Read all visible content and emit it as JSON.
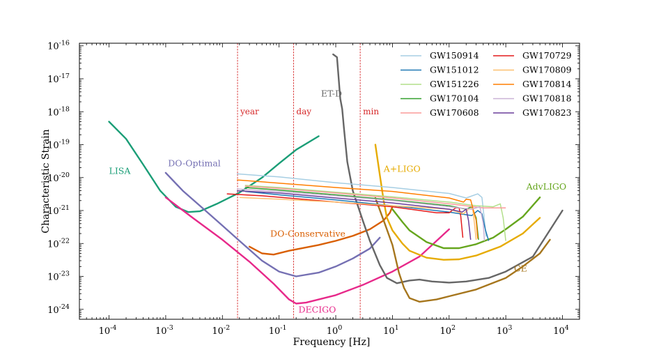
{
  "chart_data": {
    "type": "line",
    "title": "",
    "xlabel": "Frequency [Hz]",
    "ylabel": "Characteristic Strain",
    "xscale": "log",
    "yscale": "log",
    "xlim": [
      3e-05,
      20000
    ],
    "ylim": [
      5e-25,
      1.2e-16
    ],
    "xticks": [
      {
        "value": 0.0001,
        "base": "10",
        "exp": "-4"
      },
      {
        "value": 0.001,
        "base": "10",
        "exp": "-3"
      },
      {
        "value": 0.01,
        "base": "10",
        "exp": "-2"
      },
      {
        "value": 0.1,
        "base": "10",
        "exp": "-1"
      },
      {
        "value": 1,
        "base": "10",
        "exp": "0"
      },
      {
        "value": 10,
        "base": "10",
        "exp": "1"
      },
      {
        "value": 100,
        "base": "10",
        "exp": "2"
      },
      {
        "value": 1000,
        "base": "10",
        "exp": "3"
      },
      {
        "value": 10000,
        "base": "10",
        "exp": "4"
      }
    ],
    "yticks": [
      {
        "value": 1e-24,
        "base": "10",
        "exp": "-24"
      },
      {
        "value": 1e-23,
        "base": "10",
        "exp": "-23"
      },
      {
        "value": 1e-22,
        "base": "10",
        "exp": "-22"
      },
      {
        "value": 1e-21,
        "base": "10",
        "exp": "-21"
      },
      {
        "value": 1e-20,
        "base": "10",
        "exp": "-20"
      },
      {
        "value": 1e-19,
        "base": "10",
        "exp": "-19"
      },
      {
        "value": 1e-18,
        "base": "10",
        "exp": "-18"
      },
      {
        "value": 1e-17,
        "base": "10",
        "exp": "-17"
      },
      {
        "value": 1e-16,
        "base": "10",
        "exp": "-16"
      }
    ],
    "vertical_lines": [
      {
        "x": 0.0185,
        "label": "year",
        "color": "#d62728"
      },
      {
        "x": 0.18,
        "label": "day",
        "color": "#d62728"
      },
      {
        "x": 2.7,
        "label": "min",
        "color": "#d62728"
      }
    ],
    "detectors": [
      {
        "name": "LISA",
        "label": "LISA",
        "color": "#1b9e77",
        "label_at": [
          0.0001,
          1.3e-20
        ],
        "points": [
          [
            0.0001,
            5e-19
          ],
          [
            0.0002,
            1.5e-19
          ],
          [
            0.0004,
            2.5e-20
          ],
          [
            0.0008,
            4e-21
          ],
          [
            0.0015,
            1.3e-21
          ],
          [
            0.0025,
            9e-22
          ],
          [
            0.004,
            9.5e-22
          ],
          [
            0.008,
            1.6e-21
          ],
          [
            0.02,
            3.5e-21
          ],
          [
            0.05,
            1e-20
          ],
          [
            0.1,
            2.7e-20
          ],
          [
            0.2,
            7e-20
          ],
          [
            0.5,
            1.8e-19
          ]
        ]
      },
      {
        "name": "DO-Optimal",
        "label": "DO-Optimal",
        "color": "#7570b3",
        "label_at": [
          0.0011,
          2.2e-20
        ],
        "points": [
          [
            0.001,
            1.4e-20
          ],
          [
            0.002,
            4e-21
          ],
          [
            0.005,
            1e-21
          ],
          [
            0.01,
            3.5e-22
          ],
          [
            0.02,
            1.2e-22
          ],
          [
            0.05,
            3e-23
          ],
          [
            0.1,
            1.4e-23
          ],
          [
            0.2,
            1e-23
          ],
          [
            0.5,
            1.3e-23
          ],
          [
            1,
            2e-23
          ],
          [
            2,
            3.5e-23
          ],
          [
            4,
            7e-23
          ],
          [
            6,
            1.5e-22
          ]
        ]
      },
      {
        "name": "DO-Conservative",
        "label": "DO-Conservative",
        "color": "#d95f02",
        "label_at": [
          0.07,
          1.6e-22
        ],
        "points": [
          [
            0.03,
            8e-23
          ],
          [
            0.05,
            5e-23
          ],
          [
            0.08,
            4.6e-23
          ],
          [
            0.15,
            6e-23
          ],
          [
            0.5,
            9e-23
          ],
          [
            1,
            1.2e-22
          ],
          [
            2,
            1.7e-22
          ],
          [
            4,
            2.7e-22
          ],
          [
            7,
            5e-22
          ],
          [
            9,
            8.5e-22
          ],
          [
            10,
            1.3e-21
          ]
        ]
      },
      {
        "name": "DECIGO",
        "label": "DECIGO",
        "color": "#e7298a",
        "label_at": [
          0.22,
          8e-25
        ],
        "points": [
          [
            0.001,
            2.5e-21
          ],
          [
            0.003,
            6e-22
          ],
          [
            0.01,
            1.3e-22
          ],
          [
            0.03,
            2.8e-23
          ],
          [
            0.08,
            6e-24
          ],
          [
            0.15,
            2e-24
          ],
          [
            0.2,
            1.5e-24
          ],
          [
            0.3,
            1.6e-24
          ],
          [
            1,
            2.7e-24
          ],
          [
            3,
            5.5e-24
          ],
          [
            10,
            1.4e-23
          ],
          [
            30,
            4e-23
          ],
          [
            100,
            2.7e-22
          ]
        ]
      },
      {
        "name": "ET-D",
        "label": "ET-D",
        "color": "#666666",
        "label_at": [
          0.55,
          2.9e-18
        ],
        "points": [
          [
            0.9,
            5.5e-17
          ],
          [
            1.05,
            4.5e-17
          ],
          [
            1.2,
            2.5e-18
          ],
          [
            1.3,
            1.2e-18
          ],
          [
            1.4,
            3e-19
          ],
          [
            1.6,
            3e-20
          ],
          [
            2,
            4e-21
          ],
          [
            3,
            5e-22
          ],
          [
            4,
            1.2e-22
          ],
          [
            6,
            2.2e-23
          ],
          [
            8,
            9e-24
          ],
          [
            12,
            6.2e-24
          ],
          [
            20,
            7.5e-24
          ],
          [
            30,
            8e-24
          ],
          [
            50,
            7e-24
          ],
          [
            100,
            6.5e-24
          ],
          [
            200,
            7e-24
          ],
          [
            500,
            9e-24
          ],
          [
            1000,
            1.4e-23
          ],
          [
            3000,
            4e-23
          ],
          [
            10000,
            1e-21
          ]
        ]
      },
      {
        "name": "A+LIGO",
        "label": "A+LIGO",
        "color": "#e6ab02",
        "label_at": [
          7,
          1.5e-20
        ],
        "points": [
          [
            5,
            1e-19
          ],
          [
            6,
            1.2e-20
          ],
          [
            7,
            2e-21
          ],
          [
            8,
            6e-22
          ],
          [
            10,
            2.5e-22
          ],
          [
            15,
            1e-22
          ],
          [
            20,
            6e-23
          ],
          [
            40,
            3.7e-23
          ],
          [
            80,
            3.2e-23
          ],
          [
            150,
            3.3e-23
          ],
          [
            300,
            4.3e-23
          ],
          [
            800,
            8e-23
          ],
          [
            2000,
            2e-22
          ],
          [
            4000,
            6e-22
          ]
        ]
      },
      {
        "name": "AdvLIGO",
        "label": "AdvLIGO",
        "color": "#66a61e",
        "label_at": [
          2300,
          4.3e-21
        ],
        "points": [
          [
            10,
            1.1e-21
          ],
          [
            15,
            4.5e-22
          ],
          [
            20,
            2.5e-22
          ],
          [
            40,
            1.1e-22
          ],
          [
            80,
            7.2e-23
          ],
          [
            150,
            7.2e-23
          ],
          [
            300,
            9.5e-23
          ],
          [
            600,
            1.5e-22
          ],
          [
            1000,
            2.7e-22
          ],
          [
            2000,
            6.5e-22
          ],
          [
            4000,
            2.5e-21
          ]
        ]
      },
      {
        "name": "CE",
        "label": "CE",
        "color": "#a6761d",
        "label_at": [
          1400,
          1.4e-23
        ],
        "points": [
          [
            5,
            2.4e-21
          ],
          [
            7,
            5e-22
          ],
          [
            10,
            9e-23
          ],
          [
            13,
            1.3e-23
          ],
          [
            16,
            4.5e-24
          ],
          [
            20,
            2.2e-24
          ],
          [
            30,
            1.7e-24
          ],
          [
            60,
            2e-24
          ],
          [
            100,
            2.5e-24
          ],
          [
            300,
            4e-24
          ],
          [
            1000,
            9e-24
          ],
          [
            2000,
            2e-23
          ],
          [
            4000,
            5e-23
          ],
          [
            6000,
            1.3e-22
          ]
        ]
      }
    ],
    "events": [
      {
        "name": "GW150914",
        "color": "#a6cee3",
        "points": [
          [
            0.018,
            1.3e-20
          ],
          [
            0.1,
            1.05e-20
          ],
          [
            1,
            7e-21
          ],
          [
            10,
            5e-21
          ],
          [
            100,
            3.3e-21
          ],
          [
            200,
            2.4e-21
          ],
          [
            320,
            3.2e-21
          ],
          [
            380,
            2.5e-21
          ],
          [
            420,
            5e-22
          ],
          [
            450,
            1.6e-22
          ]
        ]
      },
      {
        "name": "GW151012",
        "color": "#1f78b4",
        "points": [
          [
            0.025,
            3.8e-21
          ],
          [
            0.1,
            3e-21
          ],
          [
            1,
            2.1e-21
          ],
          [
            10,
            1.4e-21
          ],
          [
            100,
            9e-22
          ],
          [
            250,
            7e-22
          ],
          [
            320,
            1e-21
          ],
          [
            380,
            8e-22
          ],
          [
            440,
            2.5e-22
          ],
          [
            500,
            1.2e-22
          ]
        ]
      },
      {
        "name": "GW151226",
        "color": "#b2df8a",
        "points": [
          [
            0.025,
            5.8e-21
          ],
          [
            0.1,
            5e-21
          ],
          [
            1,
            3.6e-21
          ],
          [
            10,
            2.6e-21
          ],
          [
            100,
            1.8e-21
          ],
          [
            300,
            1.4e-21
          ],
          [
            600,
            1.3e-21
          ],
          [
            800,
            1.6e-21
          ],
          [
            900,
            6e-22
          ],
          [
            1000,
            1.2e-22
          ]
        ]
      },
      {
        "name": "GW170104",
        "color": "#33a02c",
        "points": [
          [
            0.025,
            5e-21
          ],
          [
            0.1,
            4.2e-21
          ],
          [
            1,
            3e-21
          ],
          [
            10,
            2.1e-21
          ],
          [
            100,
            1.4e-21
          ],
          [
            200,
            1.1e-21
          ],
          [
            250,
            1.3e-21
          ],
          [
            300,
            6e-22
          ],
          [
            330,
            1.3e-22
          ]
        ]
      },
      {
        "name": "GW170608",
        "color": "#fb9a99",
        "points": [
          [
            0.025,
            5.5e-21
          ],
          [
            0.1,
            4.7e-21
          ],
          [
            1,
            3.4e-21
          ],
          [
            10,
            2.4e-21
          ],
          [
            100,
            1.6e-21
          ],
          [
            400,
            1.2e-21
          ],
          [
            800,
            1.2e-21
          ],
          [
            1000,
            1.2e-21
          ]
        ]
      },
      {
        "name": "GW170729",
        "color": "#e31a1c",
        "points": [
          [
            0.012,
            3.2e-21
          ],
          [
            0.05,
            2.8e-21
          ],
          [
            1,
            1.8e-21
          ],
          [
            10,
            1.3e-21
          ],
          [
            60,
            8.5e-22
          ],
          [
            100,
            8.5e-22
          ],
          [
            130,
            1.2e-21
          ],
          [
            150,
            1.2e-21
          ],
          [
            160,
            7e-22
          ],
          [
            175,
            1.5e-22
          ]
        ]
      },
      {
        "name": "GW170809",
        "color": "#fdbf6f",
        "points": [
          [
            0.02,
            2.5e-21
          ],
          [
            0.1,
            2.2e-21
          ],
          [
            1,
            1.8e-21
          ],
          [
            10,
            1.4e-21
          ],
          [
            100,
            1.1e-21
          ],
          [
            180,
            8e-22
          ],
          [
            220,
            1.1e-21
          ],
          [
            260,
            1.2e-21
          ],
          [
            280,
            4e-22
          ],
          [
            300,
            1.3e-22
          ]
        ]
      },
      {
        "name": "GW170814",
        "color": "#ff7f00",
        "points": [
          [
            0.018,
            8.5e-21
          ],
          [
            0.1,
            6.8e-21
          ],
          [
            1,
            5e-21
          ],
          [
            10,
            3.8e-21
          ],
          [
            100,
            2.4e-21
          ],
          [
            180,
            1.8e-21
          ],
          [
            200,
            2.2e-21
          ],
          [
            240,
            2.1e-21
          ],
          [
            300,
            5e-22
          ],
          [
            320,
            1.4e-22
          ]
        ]
      },
      {
        "name": "GW170818",
        "color": "#cab2d6",
        "points": [
          [
            0.018,
            4.5e-21
          ],
          [
            0.1,
            3.8e-21
          ],
          [
            1,
            2.8e-21
          ],
          [
            10,
            2e-21
          ],
          [
            100,
            1.3e-21
          ],
          [
            250,
            1.1e-21
          ],
          [
            350,
            1.3e-21
          ],
          [
            400,
            4e-22
          ],
          [
            420,
            1.2e-22
          ]
        ]
      },
      {
        "name": "GW170823",
        "color": "#6a3d9a",
        "points": [
          [
            0.018,
            4e-21
          ],
          [
            0.1,
            3.4e-21
          ],
          [
            1,
            2.4e-21
          ],
          [
            10,
            1.7e-21
          ],
          [
            100,
            1.1e-21
          ],
          [
            170,
            9e-22
          ],
          [
            200,
            1.1e-21
          ],
          [
            220,
            5e-22
          ],
          [
            240,
            1.3e-22
          ]
        ]
      }
    ],
    "legend": {
      "placement": "top-right",
      "columns": [
        [
          "GW150914",
          "GW151012",
          "GW151226",
          "GW170104",
          "GW170608"
        ],
        [
          "GW170729",
          "GW170809",
          "GW170814",
          "GW170818",
          "GW170823"
        ]
      ]
    }
  }
}
